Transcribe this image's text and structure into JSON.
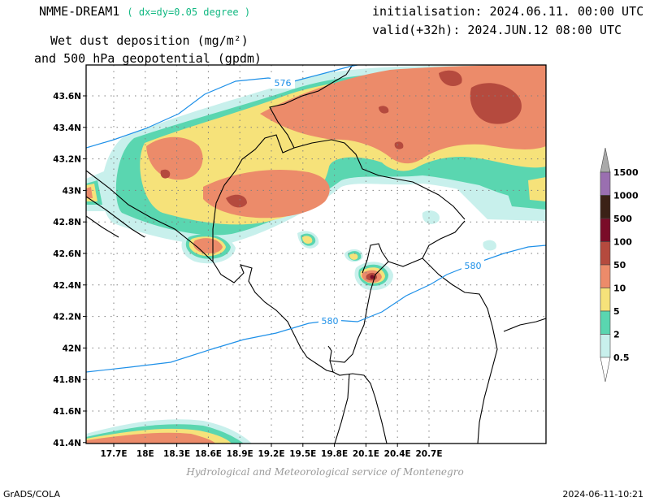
{
  "header": {
    "model": "NMME-DREAM1",
    "resolution": "( dx=dy=0.05 degree )",
    "field_line1": "Wet dust deposition (mg/m²)",
    "field_line2": "and 500 hPa geopotential (gpdm)",
    "init_label": "initialisation: 2024.06.11. 00:00 UTC",
    "valid_label": "valid(+32h): 2024.JUN.12 08:00 UTC"
  },
  "map": {
    "lat_labels": [
      "43.6N",
      "43.4N",
      "43.2N",
      "43N",
      "42.8N",
      "42.6N",
      "42.4N",
      "42.2N",
      "42N",
      "41.8N",
      "41.6N",
      "41.4N"
    ],
    "lon_labels": [
      "17.7E",
      "18E",
      "18.3E",
      "18.6E",
      "18.9E",
      "19.2E",
      "19.5E",
      "19.8E",
      "20.1E",
      "20.4E",
      "20.7E"
    ],
    "contour_labels": [
      "576",
      "580",
      "580"
    ],
    "contour_color": "#1e90e8"
  },
  "legend": {
    "levels": [
      "1500",
      "1000",
      "500",
      "100",
      "50",
      "10",
      "5",
      "2",
      "0.5"
    ],
    "colors": [
      "#a9a9a9",
      "#9a6fb0",
      "#3b2116",
      "#7a0c28",
      "#b54a3e",
      "#ec8b6a",
      "#f6e27a",
      "#5ad6b0",
      "#c8f0ec"
    ]
  },
  "footer": {
    "credit": "Hydrological and Meteorological service of Montenegro",
    "software": "GrADS/COLA",
    "timestamp": "2024-06-11-10:21"
  }
}
